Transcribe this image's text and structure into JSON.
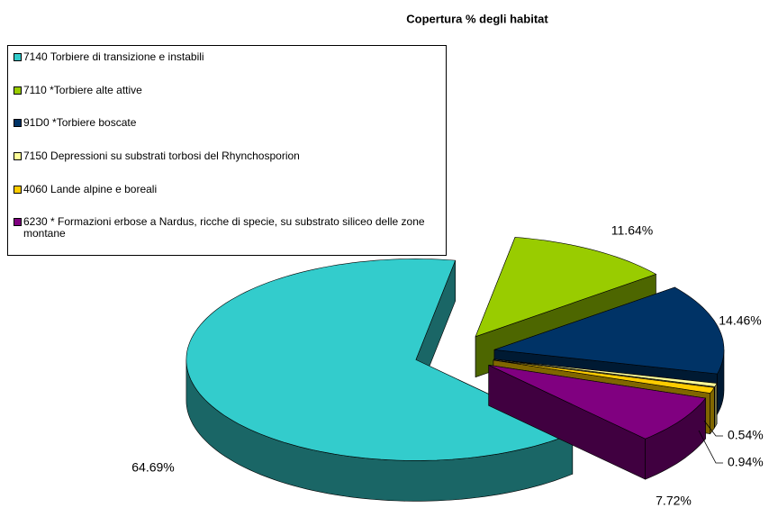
{
  "chart_data": {
    "type": "pie",
    "title": "Copertura % degli habitat",
    "categories": [
      "7140 Torbiere di transizione e instabili",
      "7110 *Torbiere alte attive",
      "91D0 *Torbiere boscate",
      "7150 Depressioni su substrati torbosi del Rhynchosporion",
      "4060 Lande alpine e boreali",
      "6230 * Formazioni erbose a Nardus, ricche di specie, su substrato siliceo delle zone montane"
    ],
    "values": [
      64.69,
      11.64,
      14.46,
      0.54,
      0.94,
      7.72
    ],
    "value_labels": [
      "64.69%",
      "11.64%",
      "14.46%",
      "0.54%",
      "0.94%",
      "7.72%"
    ],
    "colors": [
      "#33CCCC",
      "#99CC00",
      "#003366",
      "#FFFF99",
      "#FFCC00",
      "#800080"
    ]
  }
}
